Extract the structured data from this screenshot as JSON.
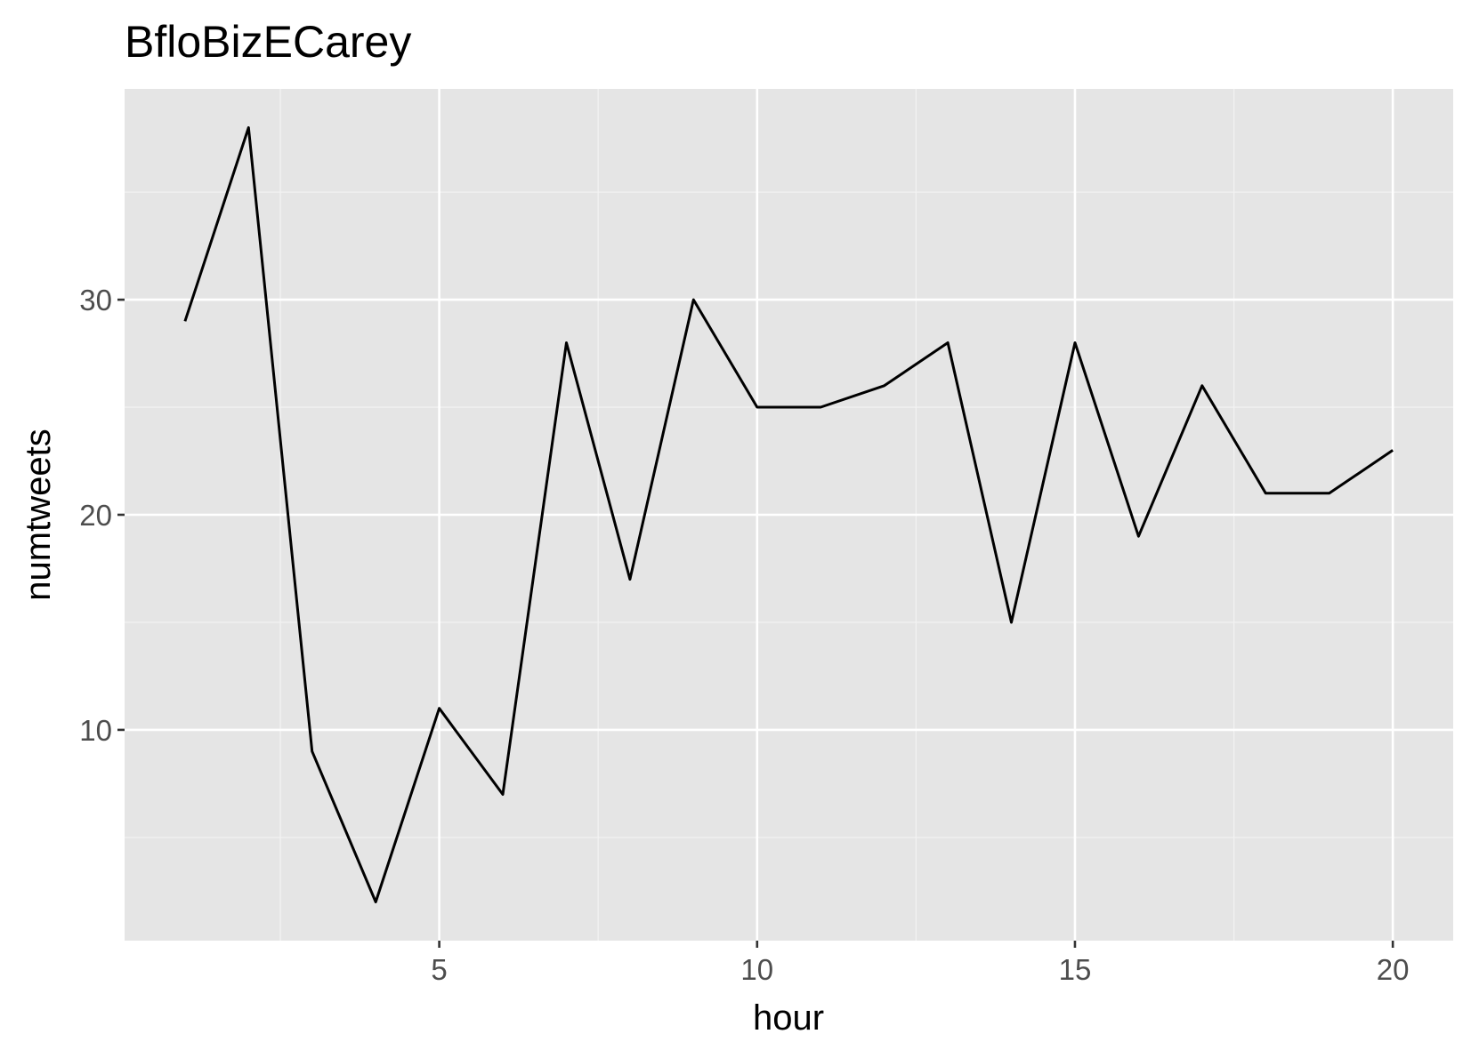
{
  "colors": {
    "panel_background": "#E5E5E5",
    "grid_major": "#FFFFFF",
    "grid_minor": "#F2F2F2",
    "line": "#000000",
    "tick_text": "#4D4D4D",
    "tick_mark": "#333333"
  },
  "chart_data": {
    "type": "line",
    "title": "BfloBizECarey",
    "xlabel": "hour",
    "ylabel": "numtweets",
    "xlim": [
      0.05,
      20.95
    ],
    "ylim": [
      0.2,
      39.8
    ],
    "x_ticks": [
      5,
      10,
      15,
      20
    ],
    "x_tick_labels": [
      "5",
      "10",
      "15",
      "20"
    ],
    "x_minor_ticks": [
      2.5,
      7.5,
      12.5,
      17.5
    ],
    "y_ticks": [
      10,
      20,
      30
    ],
    "y_tick_labels": [
      "10",
      "20",
      "30"
    ],
    "y_minor_ticks": [
      5,
      15,
      25,
      35
    ],
    "grid": true,
    "legend": "none",
    "x": [
      1,
      2,
      3,
      4,
      5,
      6,
      7,
      8,
      9,
      10,
      11,
      12,
      13,
      14,
      15,
      16,
      17,
      18,
      19,
      20
    ],
    "series": [
      {
        "values": [
          29,
          38,
          9,
          2,
          11,
          7,
          28,
          17,
          30,
          25,
          25,
          26,
          28,
          15,
          28,
          19,
          26,
          21,
          21,
          23
        ]
      }
    ]
  }
}
